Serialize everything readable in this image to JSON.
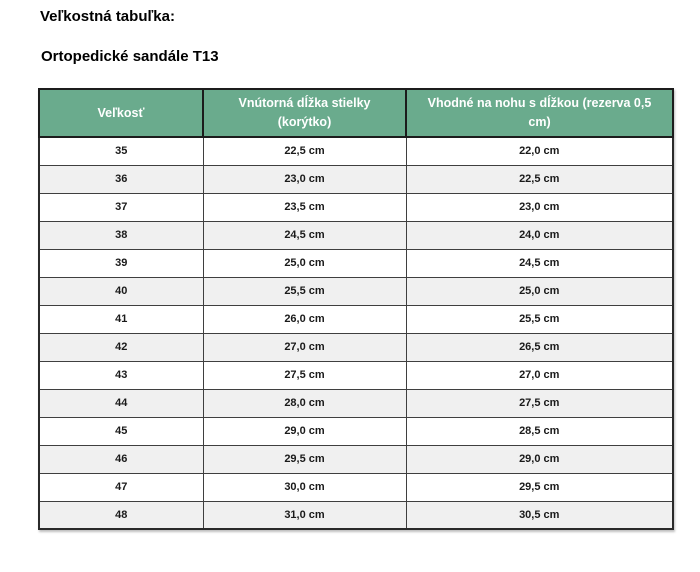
{
  "doc": {
    "heading": "Veľkostná tabuľka:",
    "product": "Ortopedické sandále T13"
  },
  "table": {
    "headers": [
      "Veľkosť",
      "Vnútorná dĺžka stielky (korýtko)",
      "Vhodné na nohu s dĺžkou (rezerva 0,5 cm)"
    ],
    "rows": [
      [
        "35",
        "22,5 cm",
        "22,0 cm"
      ],
      [
        "36",
        "23,0 cm",
        "22,5 cm"
      ],
      [
        "37",
        "23,5 cm",
        "23,0 cm"
      ],
      [
        "38",
        "24,5 cm",
        "24,0 cm"
      ],
      [
        "39",
        "25,0 cm",
        "24,5 cm"
      ],
      [
        "40",
        "25,5 cm",
        "25,0 cm"
      ],
      [
        "41",
        "26,0 cm",
        "25,5 cm"
      ],
      [
        "42",
        "27,0 cm",
        "26,5 cm"
      ],
      [
        "43",
        "27,5 cm",
        "27,0 cm"
      ],
      [
        "44",
        "28,0 cm",
        "27,5 cm"
      ],
      [
        "45",
        "29,0 cm",
        "28,5 cm"
      ],
      [
        "46",
        "29,5 cm",
        "29,0 cm"
      ],
      [
        "47",
        "30,0 cm",
        "29,5 cm"
      ],
      [
        "48",
        "31,0 cm",
        "30,5 cm"
      ]
    ]
  },
  "colors": {
    "header_bg": "#6aab8d",
    "header_text": "#ffffff",
    "row_even_bg": "#f0f0f0",
    "row_odd_bg": "#ffffff",
    "border": "#3f3f3f",
    "text": "#1a1a1a"
  }
}
